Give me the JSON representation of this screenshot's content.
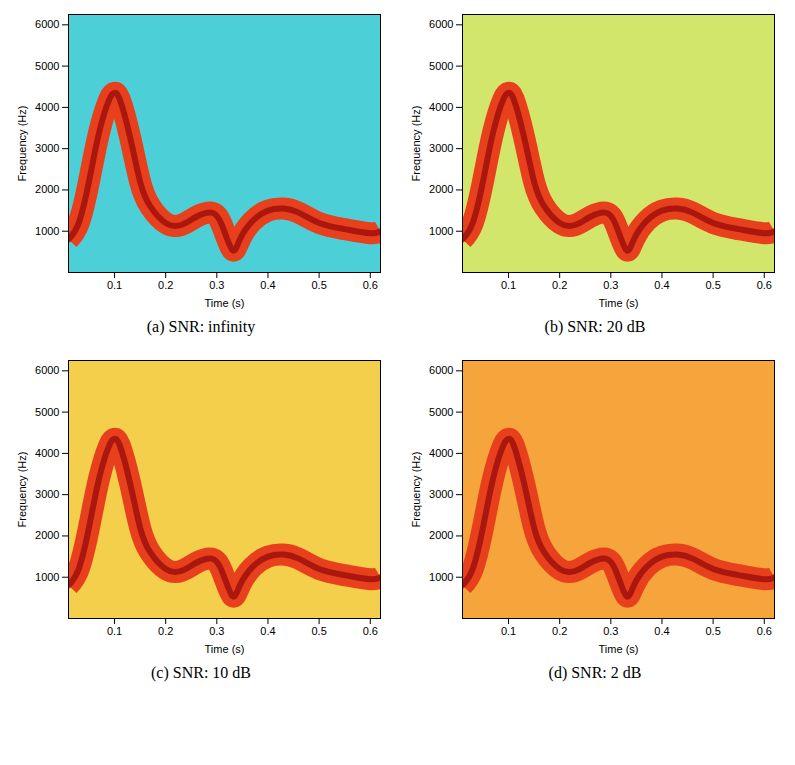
{
  "chart_data": [
    {
      "type": "line",
      "title": "(a) SNR: infinity",
      "x_label": "Time (s)",
      "y_label": "Frequency (Hz)",
      "x": [
        0.01,
        0.03,
        0.05,
        0.07,
        0.09,
        0.1,
        0.11,
        0.13,
        0.15,
        0.17,
        0.2,
        0.23,
        0.26,
        0.29,
        0.31,
        0.33,
        0.345,
        0.37,
        0.4,
        0.43,
        0.46,
        0.5,
        0.55,
        0.6,
        0.62
      ],
      "values": [
        800,
        1200,
        2200,
        3400,
        4200,
        4350,
        4200,
        3300,
        2200,
        1600,
        1200,
        1150,
        1350,
        1450,
        1150,
        550,
        800,
        1250,
        1500,
        1550,
        1450,
        1200,
        1050,
        950,
        1000
      ],
      "color": "#e8401c",
      "xlim": [
        0.01,
        0.62
      ],
      "xticks": [
        0.1,
        0.2,
        0.3,
        0.4,
        0.5,
        0.6
      ],
      "ylim": [
        0,
        6250
      ],
      "yticks": [
        1000,
        2000,
        3000,
        4000,
        5000,
        6000
      ]
    },
    {
      "type": "line",
      "title": "(b) SNR: 20 dB",
      "x_label": "Time (s)",
      "y_label": "Frequency (Hz)",
      "x": [
        0.01,
        0.03,
        0.05,
        0.07,
        0.09,
        0.1,
        0.11,
        0.13,
        0.15,
        0.17,
        0.2,
        0.23,
        0.26,
        0.29,
        0.31,
        0.33,
        0.345,
        0.37,
        0.4,
        0.43,
        0.46,
        0.5,
        0.55,
        0.6,
        0.62
      ],
      "values": [
        800,
        1200,
        2200,
        3400,
        4200,
        4350,
        4200,
        3300,
        2200,
        1600,
        1200,
        1150,
        1350,
        1450,
        1150,
        550,
        800,
        1250,
        1500,
        1550,
        1450,
        1200,
        1050,
        950,
        1000
      ],
      "color": "#e8401c",
      "xlim": [
        0.01,
        0.62
      ],
      "xticks": [
        0.1,
        0.2,
        0.3,
        0.4,
        0.5,
        0.6
      ],
      "ylim": [
        0,
        6250
      ],
      "yticks": [
        1000,
        2000,
        3000,
        4000,
        5000,
        6000
      ]
    },
    {
      "type": "line",
      "title": "(c) SNR: 10 dB",
      "x_label": "Time (s)",
      "y_label": "Frequency (Hz)",
      "x": [
        0.01,
        0.03,
        0.05,
        0.07,
        0.09,
        0.1,
        0.11,
        0.13,
        0.15,
        0.17,
        0.2,
        0.23,
        0.26,
        0.29,
        0.31,
        0.33,
        0.345,
        0.37,
        0.4,
        0.43,
        0.46,
        0.5,
        0.55,
        0.6,
        0.62
      ],
      "values": [
        800,
        1200,
        2200,
        3400,
        4200,
        4350,
        4200,
        3300,
        2200,
        1600,
        1200,
        1150,
        1350,
        1450,
        1150,
        550,
        800,
        1250,
        1500,
        1550,
        1450,
        1200,
        1050,
        950,
        1000
      ],
      "color": "#e8401c",
      "xlim": [
        0.01,
        0.62
      ],
      "xticks": [
        0.1,
        0.2,
        0.3,
        0.4,
        0.5,
        0.6
      ],
      "ylim": [
        0,
        6250
      ],
      "yticks": [
        1000,
        2000,
        3000,
        4000,
        5000,
        6000
      ]
    },
    {
      "type": "line",
      "title": "(d) SNR: 2 dB",
      "x_label": "Time (s)",
      "y_label": "Frequency (Hz)",
      "x": [
        0.01,
        0.03,
        0.05,
        0.07,
        0.09,
        0.1,
        0.11,
        0.13,
        0.15,
        0.17,
        0.2,
        0.23,
        0.26,
        0.29,
        0.31,
        0.33,
        0.345,
        0.37,
        0.4,
        0.43,
        0.46,
        0.5,
        0.55,
        0.6,
        0.62
      ],
      "values": [
        800,
        1200,
        2200,
        3400,
        4200,
        4350,
        4200,
        3300,
        2200,
        1600,
        1200,
        1150,
        1350,
        1450,
        1150,
        550,
        800,
        1250,
        1500,
        1550,
        1450,
        1200,
        1050,
        950,
        1000
      ],
      "color": "#e8401c",
      "xlim": [
        0.01,
        0.62
      ],
      "xticks": [
        0.1,
        0.2,
        0.3,
        0.4,
        0.5,
        0.6
      ],
      "ylim": [
        0,
        6250
      ],
      "yticks": [
        1000,
        2000,
        3000,
        4000,
        5000,
        6000
      ]
    }
  ]
}
